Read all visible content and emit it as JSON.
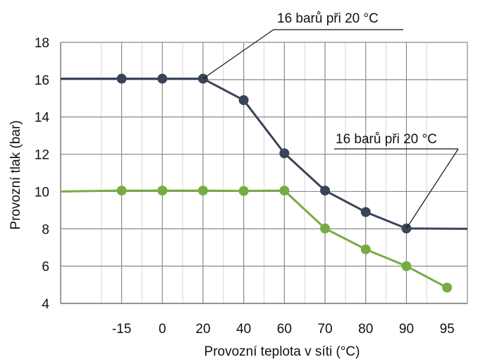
{
  "chart_data": {
    "type": "line",
    "categories": [
      "",
      "-15",
      "0",
      "20",
      "40",
      "60",
      "70",
      "80",
      "90",
      "95"
    ],
    "ylim": [
      4,
      18
    ],
    "yticks": [
      4,
      6,
      8,
      10,
      12,
      14,
      16,
      18
    ],
    "ylabel": "Provozní tlak (bar)",
    "xlabel": "Provozní teplota v síti (°C)",
    "grid": true,
    "series": [
      {
        "color": "#3a4459",
        "values": [
          16.05,
          16.05,
          16.05,
          16.05,
          14.9,
          12.05,
          10.05,
          8.9,
          8.02,
          8.0
        ],
        "markers": [
          false,
          true,
          true,
          true,
          true,
          true,
          true,
          true,
          true,
          false
        ]
      },
      {
        "color": "#78ac42",
        "values": [
          10.0,
          10.05,
          10.05,
          10.05,
          10.03,
          10.05,
          8.02,
          6.9,
          6.0,
          4.85
        ],
        "markers": [
          false,
          true,
          true,
          true,
          true,
          true,
          true,
          true,
          true,
          true
        ]
      }
    ],
    "annotations": [
      {
        "text": "16 barů při 20 °C",
        "series": 0,
        "point": 3
      },
      {
        "text": "16 barů při 20 °C",
        "series": 0,
        "point": 8
      }
    ]
  }
}
